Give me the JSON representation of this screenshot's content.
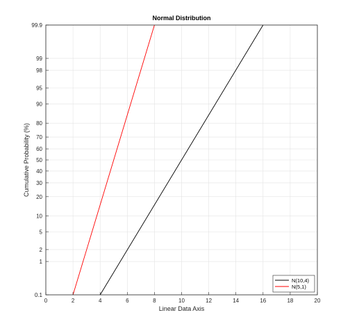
{
  "chart_data": {
    "type": "line",
    "title": "Normal Distribution",
    "xlabel": "Linear Data Axis",
    "ylabel": "Cumulative Probability (%)",
    "y_scale": "normal-probability",
    "xlim": [
      0,
      20
    ],
    "ylim": [
      0.1,
      99.9
    ],
    "xticks": [
      "0",
      "2",
      "4",
      "6",
      "8",
      "10",
      "12",
      "14",
      "16",
      "18",
      "20"
    ],
    "yticks": [
      "0.1",
      "1",
      "2",
      "5",
      "10",
      "20",
      "30",
      "40",
      "50",
      "60",
      "70",
      "80",
      "90",
      "95",
      "98",
      "99",
      "99.9"
    ],
    "grid": true,
    "legend_location": "bottom-right",
    "series": [
      {
        "name": "N(10,4)",
        "color": "#000000",
        "x": [
          4,
          16
        ],
        "y": [
          0.1,
          99.9
        ]
      },
      {
        "name": "N(5,1)",
        "color": "#ff0000",
        "x": [
          2,
          8
        ],
        "y": [
          0.1,
          99.9
        ]
      }
    ]
  }
}
